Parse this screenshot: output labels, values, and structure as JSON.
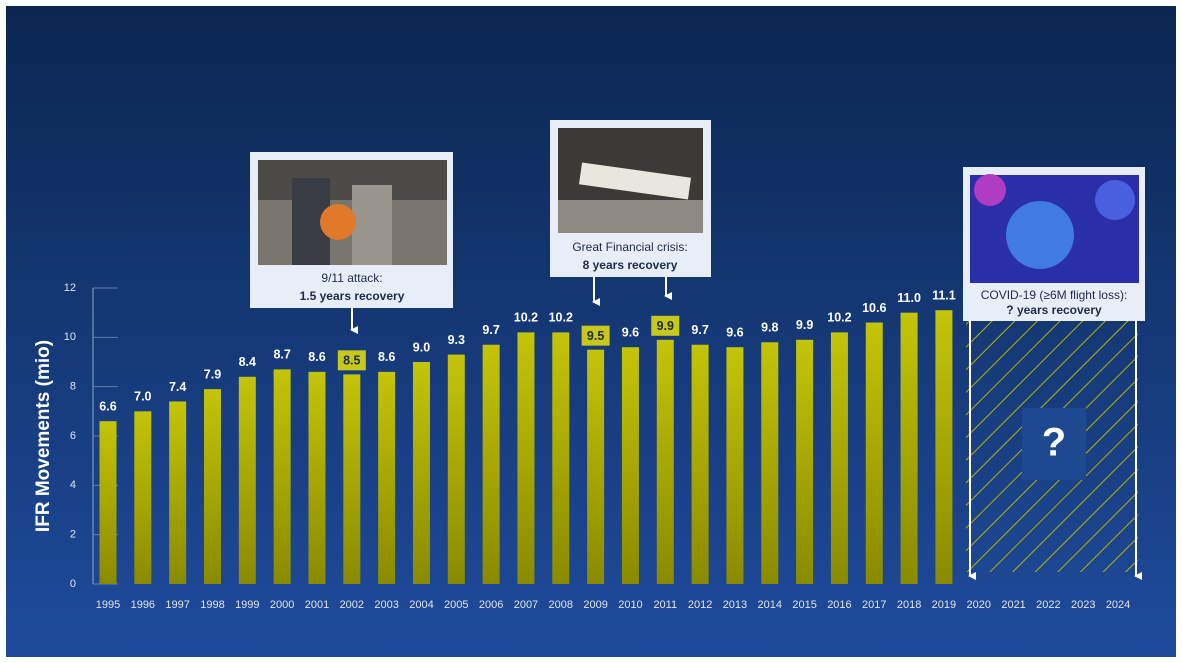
{
  "chart_data": {
    "type": "bar",
    "y_label": "IFR Movements (mio)",
    "categories": [
      "1995",
      "1996",
      "1997",
      "1998",
      "1999",
      "2000",
      "2001",
      "2002",
      "2003",
      "2004",
      "2005",
      "2006",
      "2007",
      "2008",
      "2009",
      "2010",
      "2011",
      "2012",
      "2013",
      "2014",
      "2015",
      "2016",
      "2017",
      "2018",
      "2019",
      "2020",
      "2021",
      "2022",
      "2023",
      "2024"
    ],
    "values": [
      6.6,
      7.0,
      7.4,
      7.9,
      8.4,
      8.7,
      8.6,
      8.5,
      8.6,
      9.0,
      9.3,
      9.7,
      10.2,
      10.2,
      9.5,
      9.6,
      9.9,
      9.7,
      9.6,
      9.8,
      9.9,
      10.2,
      10.6,
      11.0,
      11.1,
      null,
      null,
      null,
      null,
      null
    ],
    "value_labels": [
      "6.6",
      "7.0",
      "7.4",
      "7.9",
      "8.4",
      "8.7",
      "8.6",
      "8.5",
      "8.6",
      "9.0",
      "9.3",
      "9.7",
      "10.2",
      "10.2",
      "9.5",
      "9.6",
      "9.9",
      "9.7",
      "9.6",
      "9.8",
      "9.9",
      "10.2",
      "10.6",
      "11.0",
      "11.1",
      null,
      null,
      null,
      null,
      null
    ],
    "highlighted_indices": [
      7,
      14,
      16
    ],
    "color": "#b3b300",
    "ylim": [
      0,
      12
    ],
    "yticks": [
      0,
      2,
      4,
      6,
      8,
      10,
      12
    ],
    "annotations": [
      {
        "title": "9/11 attack:",
        "subtitle": "1.5 years recovery"
      },
      {
        "title": "Great Financial crisis:",
        "subtitle": "8 years recovery"
      },
      {
        "title": "COVID-19 (≥6M flight loss):",
        "subtitle": "? years recovery",
        "mark": "?"
      }
    ]
  }
}
